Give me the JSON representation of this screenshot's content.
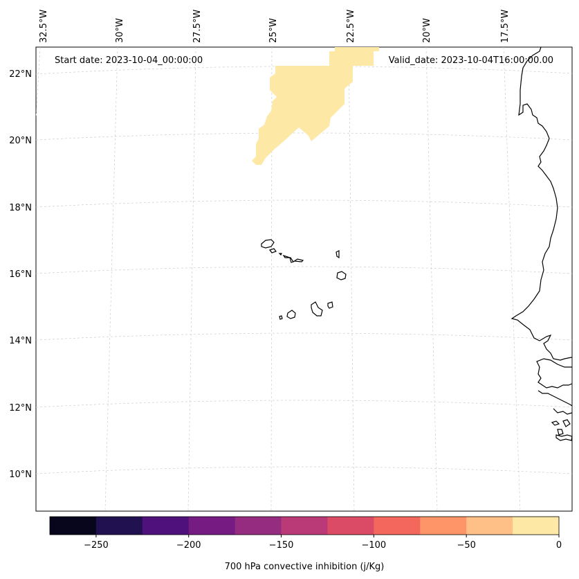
{
  "header": {
    "start_date": "Start date: 2023-10-04_00:00:00",
    "valid_date": "Valid_date: 2023-10-04T16:00:00.00"
  },
  "map": {
    "region": "Cape Verde Islands and West African coast",
    "gridlines": true,
    "longitude_labels": [
      "32.5°W",
      "30°W",
      "27.5°W",
      "25°W",
      "22.5°W",
      "20°W",
      "17.5°W"
    ],
    "latitude_labels": [
      "22°N",
      "20°N",
      "18°N",
      "16°N",
      "14°N",
      "12°N",
      "10°N"
    ],
    "field_colors": {
      "cin_0_to_minus25": "#fde8a6"
    },
    "coastline_color": "#000000"
  },
  "colorbar": {
    "label": "700 hPa convective inhibition (j/Kg)",
    "tick_labels": [
      "−250",
      "−200",
      "−150",
      "−100",
      "−50",
      "0"
    ],
    "colors": [
      "#07061c",
      "#221150",
      "#4f117b",
      "#751b81",
      "#962c80",
      "#b93a76",
      "#dc4b66",
      "#f4675c",
      "#fd9568",
      "#fec086",
      "#fde8a6"
    ],
    "range": [
      -275,
      0
    ]
  }
}
